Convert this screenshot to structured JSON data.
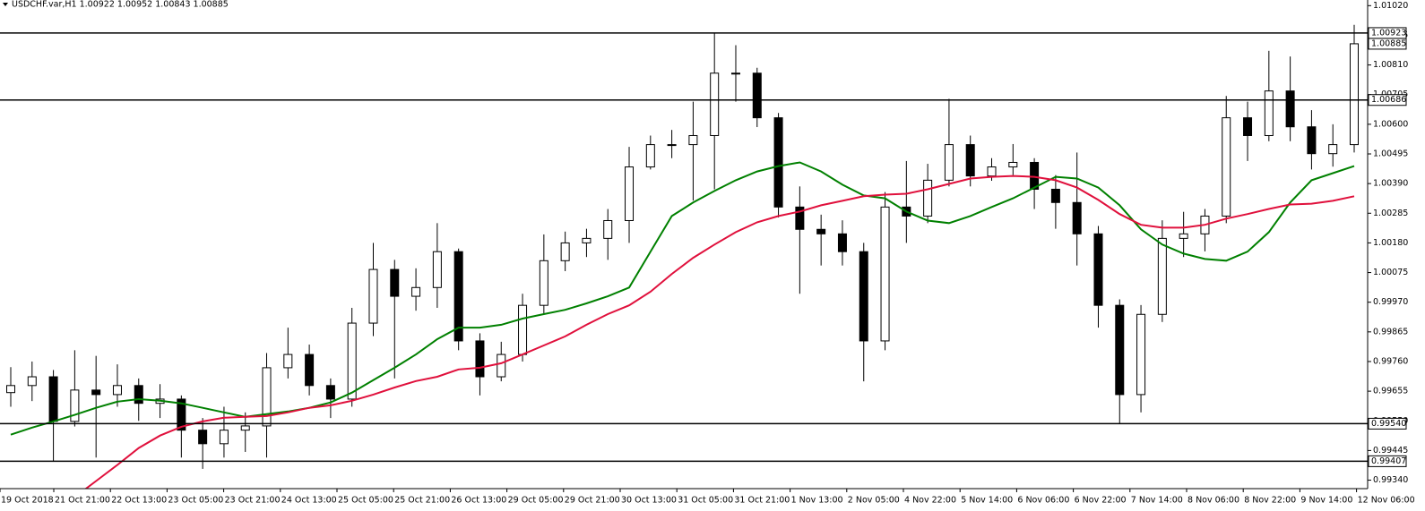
{
  "chart_data": {
    "type": "candlestick",
    "title": "USDCHF.var,H1  1.00922 1.00952 1.00843 1.00885",
    "up_color": "#ffffff",
    "down_color": "#000000",
    "outline_color": "#000000",
    "xticks": [
      "19 Oct 2018",
      "21 Oct 21:00",
      "22 Oct 13:00",
      "23 Oct 05:00",
      "23 Oct 21:00",
      "24 Oct 13:00",
      "25 Oct 05:00",
      "25 Oct 21:00",
      "26 Oct 13:00",
      "29 Oct 05:00",
      "29 Oct 21:00",
      "30 Oct 13:00",
      "31 Oct 05:00",
      "31 Oct 21:00",
      "1 Nov 13:00",
      "2 Nov 05:00",
      "4 Nov 22:00",
      "5 Nov 14:00",
      "6 Nov 06:00",
      "6 Nov 22:00",
      "7 Nov 14:00",
      "8 Nov 06:00",
      "8 Nov 22:00",
      "9 Nov 14:00",
      "12 Nov 06:00"
    ],
    "ylim": [
      0.9931,
      1.0104
    ],
    "yticks": [
      {
        "value": 1.0102,
        "label": "1.01020"
      },
      1.00915,
      {
        "value": 1.0081,
        "label": "1.00810"
      },
      1.00705,
      {
        "value": 1.006,
        "label": "1.00600"
      },
      1.00495,
      {
        "value": 1.0039,
        "label": "1.00390"
      },
      1.00285,
      {
        "value": 1.0018,
        "label": "1.00180"
      },
      1.00075,
      {
        "value": 0.9997,
        "label": "0.99970"
      },
      0.99865,
      {
        "value": 0.9976,
        "label": "0.99760"
      },
      0.99655,
      {
        "value": 0.9955,
        "label": "0.99550"
      },
      0.99445,
      {
        "value": 0.9934,
        "label": "0.99340"
      }
    ],
    "open": [
      0.9965,
      0.99675,
      0.99706,
      0.99548,
      0.99659,
      0.99643,
      0.99675,
      0.99612,
      0.99627,
      0.99517,
      0.99469,
      0.99517,
      0.99532,
      0.99738,
      0.99785,
      0.99675,
      0.99627,
      0.99896,
      1.00086,
      0.99991,
      1.00022,
      1.00149,
      0.99833,
      0.99706,
      0.99785,
      0.99959,
      1.00117,
      1.0018,
      1.00196,
      1.00259,
      1.00449,
      1.00528,
      1.00528,
      1.0056,
      1.00781,
      1.00781,
      1.00623,
      1.00307,
      1.00228,
      1.00212,
      1.00149,
      0.99833,
      1.00307,
      1.00275,
      1.00402,
      1.00528,
      1.00417,
      1.00449,
      1.00465,
      1.0037,
      1.00323,
      1.00212,
      0.99959,
      0.99643,
      0.99927,
      1.00196,
      1.00212,
      1.00275,
      1.00623,
      1.0056,
      1.00718,
      1.00591,
      1.00496,
      1.00528
    ],
    "high": [
      0.9974,
      0.9976,
      0.9973,
      0.998,
      0.9978,
      0.9975,
      0.997,
      0.9968,
      0.9964,
      0.9956,
      0.996,
      0.9958,
      0.9979,
      0.9988,
      0.9982,
      0.997,
      0.9995,
      1.0018,
      1.0012,
      1.0009,
      1.0025,
      1.0016,
      0.9986,
      0.9983,
      1.0,
      1.0021,
      1.0022,
      1.0023,
      1.003,
      1.0052,
      1.0056,
      1.0058,
      1.0068,
      1.00923,
      1.0088,
      1.008,
      1.0064,
      1.0038,
      1.0028,
      1.0026,
      1.0018,
      1.0036,
      1.0047,
      1.0046,
      1.0069,
      1.0056,
      1.0048,
      1.0053,
      1.0048,
      1.0042,
      1.005,
      1.0024,
      0.9998,
      0.9996,
      1.0026,
      1.0029,
      1.003,
      1.007,
      1.0068,
      1.0086,
      1.0084,
      1.0065,
      1.006,
      1.00952
    ],
    "low": [
      0.996,
      0.9962,
      0.99407,
      0.9953,
      0.9942,
      0.996,
      0.9955,
      0.9956,
      0.9942,
      0.9938,
      0.9942,
      0.9944,
      0.9942,
      0.997,
      0.9964,
      0.9956,
      0.996,
      0.9985,
      0.997,
      0.9994,
      0.9995,
      0.998,
      0.9964,
      0.9969,
      0.9976,
      0.9993,
      1.0008,
      1.0013,
      1.0012,
      1.0018,
      1.0044,
      1.0048,
      1.0033,
      1.0037,
      1.0068,
      1.0059,
      1.0027,
      1.0,
      1.001,
      1.001,
      0.9969,
      0.998,
      1.0018,
      1.0025,
      1.0038,
      1.0038,
      1.004,
      1.0042,
      1.003,
      1.0023,
      1.001,
      0.9988,
      0.9954,
      0.9958,
      0.999,
      1.0013,
      1.0015,
      1.0025,
      1.0047,
      1.0054,
      1.0054,
      1.0044,
      1.0045,
      1.005
    ],
    "close": [
      0.99675,
      0.99706,
      0.99548,
      0.99659,
      0.99643,
      0.99675,
      0.99612,
      0.99627,
      0.99517,
      0.99469,
      0.99517,
      0.99532,
      0.99738,
      0.99785,
      0.99675,
      0.99627,
      0.99896,
      1.00086,
      0.99991,
      1.00022,
      1.00149,
      0.99833,
      0.99706,
      0.99785,
      0.99959,
      1.00117,
      1.0018,
      1.00196,
      1.00259,
      1.00449,
      1.00528,
      1.00528,
      1.0056,
      1.00781,
      1.00781,
      1.00623,
      1.00307,
      1.00228,
      1.00212,
      1.00149,
      0.99833,
      1.00307,
      1.00275,
      1.00402,
      1.00528,
      1.00417,
      1.00449,
      1.00465,
      1.0037,
      1.00323,
      1.00212,
      0.99959,
      0.99643,
      0.99927,
      1.00196,
      1.00212,
      1.00275,
      1.00623,
      1.0056,
      1.00718,
      1.00591,
      1.00496,
      1.00528,
      1.00885
    ],
    "series": [
      {
        "color": "#008000",
        "values": [
          0.99501,
          0.99526,
          0.99548,
          0.99571,
          0.99596,
          0.99618,
          0.99627,
          0.99621,
          0.99612,
          0.99596,
          0.9958,
          0.99564,
          0.99574,
          0.99583,
          0.99596,
          0.99615,
          0.9965,
          0.99694,
          0.99738,
          0.99785,
          0.99839,
          0.9988,
          0.9988,
          0.9989,
          0.99912,
          0.99928,
          0.99943,
          0.99966,
          0.99991,
          1.00022,
          1.00149,
          1.00275,
          1.00323,
          1.00364,
          1.00402,
          1.00433,
          1.00452,
          1.00465,
          1.00433,
          1.00386,
          1.00348,
          1.00338,
          1.00291,
          1.00259,
          1.0025,
          1.00275,
          1.00307,
          1.00338,
          1.00376,
          1.00414,
          1.00408,
          1.00376,
          1.00313,
          1.00228,
          1.00174,
          1.00142,
          1.00123,
          1.00117,
          1.00149,
          1.00218,
          1.00323,
          1.00402,
          1.00427,
          1.00452
        ]
      },
      {
        "color": "#e0103c",
        "values": [
          null,
          null,
          null,
          0.9928,
          0.99337,
          0.99394,
          0.99454,
          0.99498,
          0.99529,
          0.99548,
          0.99561,
          0.99564,
          0.99567,
          0.9958,
          0.99596,
          0.99605,
          0.99621,
          0.99643,
          0.99668,
          0.99691,
          0.99706,
          0.99732,
          0.99738,
          0.99754,
          0.99785,
          0.99817,
          0.99849,
          0.9989,
          0.99928,
          0.99959,
          1.00007,
          1.0007,
          1.00127,
          1.00174,
          1.00218,
          1.00253,
          1.00275,
          1.00291,
          1.00313,
          1.00329,
          1.00345,
          1.00351,
          1.00354,
          1.0037,
          1.00389,
          1.00408,
          1.00414,
          1.00417,
          1.00414,
          1.00402,
          1.00376,
          1.00332,
          1.00282,
          1.00244,
          1.00234,
          1.00234,
          1.00244,
          1.00266,
          1.00282,
          1.003,
          1.00316,
          1.00319,
          1.00329,
          1.00345
        ]
      }
    ],
    "levels": [
      1.00923,
      1.00686,
      {
        "value": 0.9954,
        "label": "0.99540"
      },
      0.99407
    ],
    "last_price": 1.00885
  }
}
